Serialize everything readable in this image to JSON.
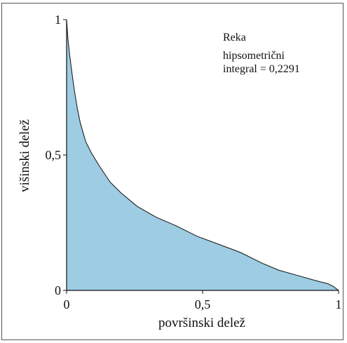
{
  "chart_data": {
    "type": "area",
    "title": "Reka",
    "annotation_lines": [
      "hipsometrični",
      "integral = 0,2291"
    ],
    "xlabel": "površinski delež",
    "ylabel": "višinski delež",
    "xlim": [
      0,
      1
    ],
    "ylim": [
      0,
      1
    ],
    "x_ticks": [
      0,
      0.5,
      1
    ],
    "x_tick_labels": [
      "0",
      "0,5",
      "1"
    ],
    "y_ticks": [
      0,
      0.5,
      1
    ],
    "y_tick_labels": [
      "0",
      "0,5",
      "1"
    ],
    "grid": false,
    "fill_color": "#9dcce3",
    "line_color": "#111111",
    "series": [
      {
        "x": [
          0,
          0.005,
          0.01,
          0.02,
          0.03,
          0.04,
          0.05,
          0.07,
          0.09,
          0.12,
          0.16,
          0.2,
          0.26,
          0.33,
          0.4,
          0.48,
          0.56,
          0.64,
          0.72,
          0.78,
          0.85,
          0.92,
          0.96,
          0.98,
          1
        ],
        "y": [
          1,
          0.93,
          0.88,
          0.8,
          0.73,
          0.67,
          0.62,
          0.55,
          0.51,
          0.46,
          0.4,
          0.36,
          0.31,
          0.27,
          0.24,
          0.2,
          0.17,
          0.14,
          0.1,
          0.075,
          0.055,
          0.035,
          0.025,
          0.015,
          0
        ]
      }
    ]
  }
}
